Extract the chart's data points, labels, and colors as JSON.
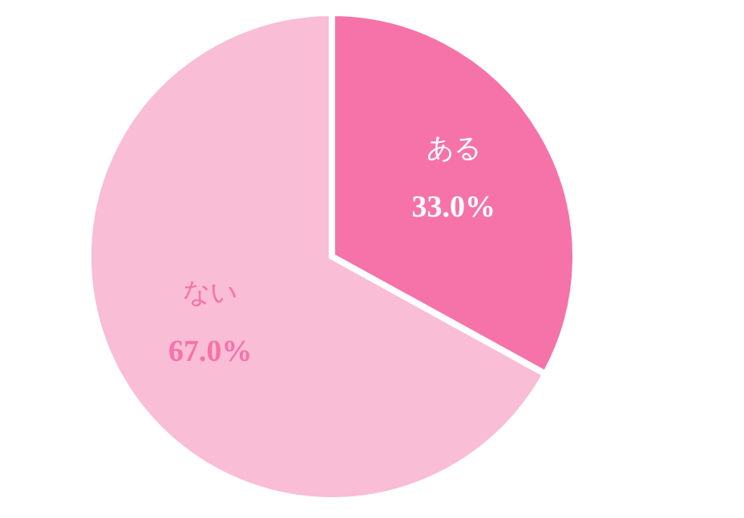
{
  "chart_data": {
    "type": "pie",
    "categories": [
      "ある",
      "ない"
    ],
    "values": [
      33.0,
      67.0
    ],
    "colors": [
      "#f673a9",
      "#f9bdd5"
    ],
    "value_labels": [
      "33.0%",
      "67.0%"
    ]
  }
}
